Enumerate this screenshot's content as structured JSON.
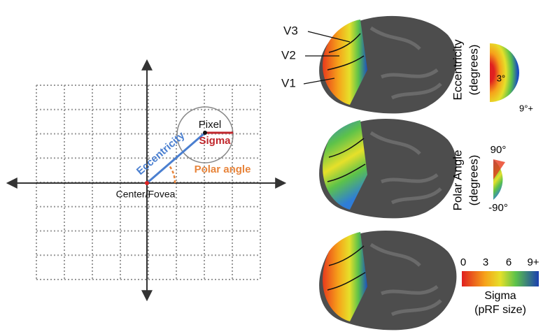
{
  "left_panel": {
    "point_label": "Pixel",
    "sigma_label": "Sigma",
    "eccentricity_label": "Eccentricity",
    "polar_angle_label": "Polar angle",
    "center_label": "Center/Fovea"
  },
  "brain_labels": [
    "V3",
    "V2",
    "V1"
  ],
  "eccentricity_legend": {
    "title": "Eccentricity",
    "unit": "(degrees)",
    "inner": "3°",
    "outer": "9°+"
  },
  "polar_angle_legend": {
    "title": "Polar Angle",
    "unit": "(degrees)",
    "top": "90°",
    "bottom": "-90°"
  },
  "sigma_legend": {
    "ticks": [
      "0",
      "3",
      "6",
      "9+"
    ],
    "title": "Sigma",
    "unit": "(pRF size)"
  }
}
